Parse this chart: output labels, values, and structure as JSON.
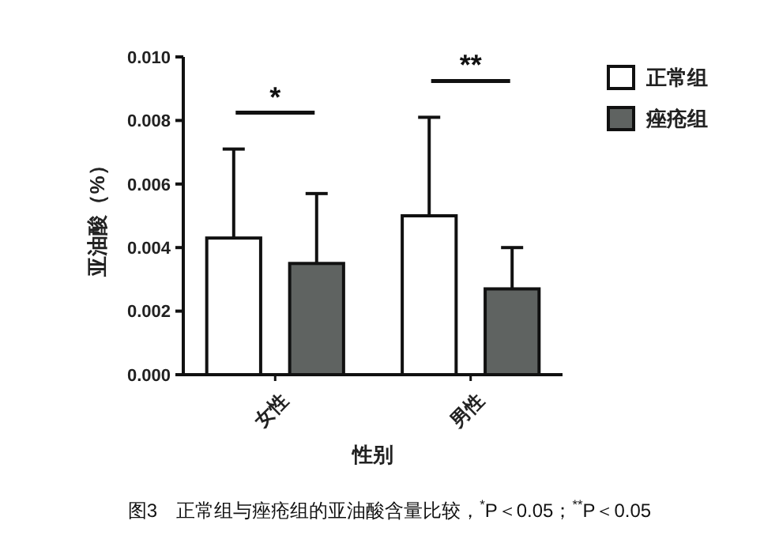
{
  "chart_data": {
    "type": "bar",
    "xlabel": "性别",
    "ylabel": "亚油酸（%）",
    "categories": [
      "女性",
      "男性"
    ],
    "series": [
      {
        "name": "正常组",
        "color": "#ffffff",
        "values": [
          0.0043,
          0.005
        ],
        "errors": [
          [
            0.0043,
            0.0071
          ],
          [
            0.005,
            0.0081
          ]
        ]
      },
      {
        "name": "痤疮组",
        "color": "#5f6361",
        "values": [
          0.0035,
          0.0027
        ],
        "errors": [
          [
            0.0035,
            0.0057
          ],
          [
            0.0027,
            0.004
          ]
        ]
      }
    ],
    "ylim": [
      0,
      0.01
    ],
    "yticks": [
      {
        "value": 0,
        "label": "0.000"
      },
      {
        "value": 0.002,
        "label": "0.002"
      },
      {
        "value": 0.004,
        "label": "0.004"
      },
      {
        "value": 0.006,
        "label": "0.006"
      },
      {
        "value": 0.008,
        "label": "0.008"
      },
      {
        "value": 0.01,
        "label": "0.010"
      }
    ],
    "legend": "top right",
    "grid": false,
    "annotations": [
      "*",
      "**",
      "图3　正常组与痤疮组的亚油酸含量比较，$^{*}$P＜0.05；$^{**}$P＜0.05"
    ]
  }
}
